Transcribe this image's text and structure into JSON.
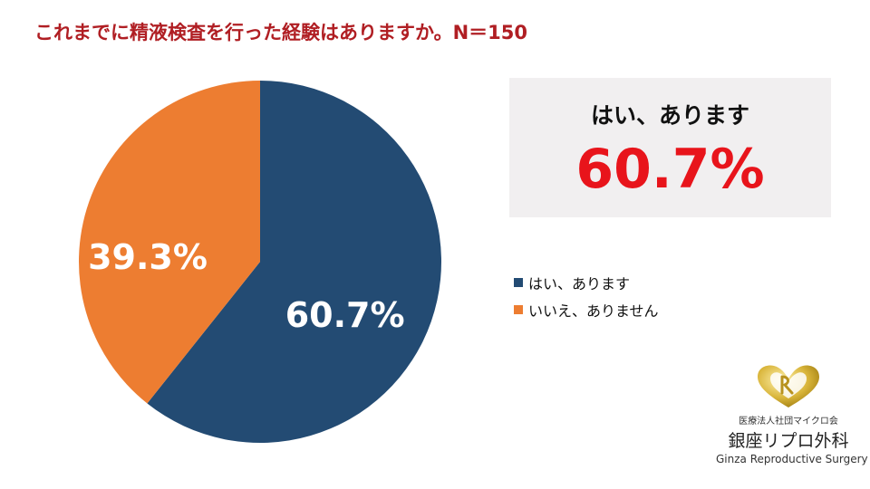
{
  "title": "これまでに精液検査を行った経験はありますか。N＝150",
  "colors": {
    "title": "#b01e23",
    "yes": "#234b73",
    "no": "#ed7d31",
    "highlight": "#e8141b"
  },
  "highlight": {
    "label": "はい、あります",
    "value": "60.7%"
  },
  "chart_data": {
    "type": "pie",
    "title": "これまでに精液検査を行った経験はありますか。N＝150",
    "slices": [
      {
        "label": "はい、あります",
        "value": 60.7,
        "display": "60.7%",
        "color": "#234b73"
      },
      {
        "label": "いいえ、ありません",
        "value": 39.3,
        "display": "39.3%",
        "color": "#ed7d31"
      }
    ],
    "legend": "right"
  },
  "logo": {
    "org": "医療法人社団マイクロ会",
    "name": "銀座リプロ外科",
    "name_en": "Ginza Reproductive Surgery"
  }
}
